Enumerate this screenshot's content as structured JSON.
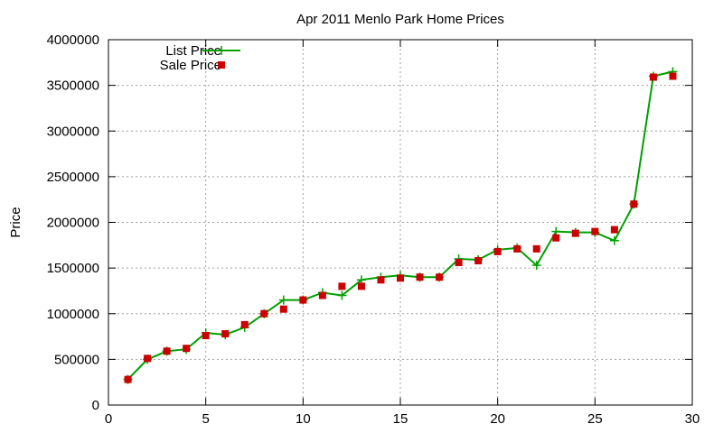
{
  "chart_data": {
    "type": "line",
    "title": "Apr 2011 Menlo Park Home Prices",
    "xlabel": "",
    "ylabel": "Price",
    "xlim": [
      0,
      30
    ],
    "ylim": [
      0,
      4000000
    ],
    "xticks": [
      0,
      5,
      10,
      15,
      20,
      25,
      30
    ],
    "yticks": [
      0,
      500000,
      1000000,
      1500000,
      2000000,
      2500000,
      3000000,
      3500000,
      4000000
    ],
    "grid": true,
    "legend_position": "top-left",
    "series": [
      {
        "name": "List Price",
        "style": "line-with-plus",
        "color": "#00a000",
        "x": [
          1,
          2,
          3,
          4,
          5,
          6,
          7,
          8,
          9,
          10,
          11,
          12,
          13,
          14,
          15,
          16,
          17,
          18,
          19,
          20,
          21,
          22,
          23,
          24,
          25,
          26,
          27,
          28,
          29
        ],
        "values": [
          280000,
          500000,
          590000,
          610000,
          790000,
          770000,
          850000,
          1000000,
          1150000,
          1150000,
          1230000,
          1200000,
          1370000,
          1400000,
          1420000,
          1400000,
          1400000,
          1600000,
          1590000,
          1700000,
          1720000,
          1530000,
          1900000,
          1890000,
          1890000,
          1800000,
          2200000,
          3600000,
          3650000
        ]
      },
      {
        "name": "Sale Price",
        "style": "square-markers",
        "color": "#cc0000",
        "x": [
          1,
          2,
          3,
          4,
          5,
          6,
          7,
          8,
          9,
          10,
          11,
          12,
          13,
          14,
          15,
          16,
          17,
          18,
          19,
          20,
          21,
          22,
          23,
          24,
          25,
          26,
          27,
          28,
          29
        ],
        "values": [
          280000,
          510000,
          590000,
          620000,
          760000,
          780000,
          880000,
          1000000,
          1050000,
          1150000,
          1200000,
          1300000,
          1300000,
          1370000,
          1390000,
          1400000,
          1400000,
          1560000,
          1580000,
          1680000,
          1710000,
          1710000,
          1830000,
          1880000,
          1900000,
          1920000,
          2200000,
          3590000,
          3600000
        ]
      }
    ]
  }
}
